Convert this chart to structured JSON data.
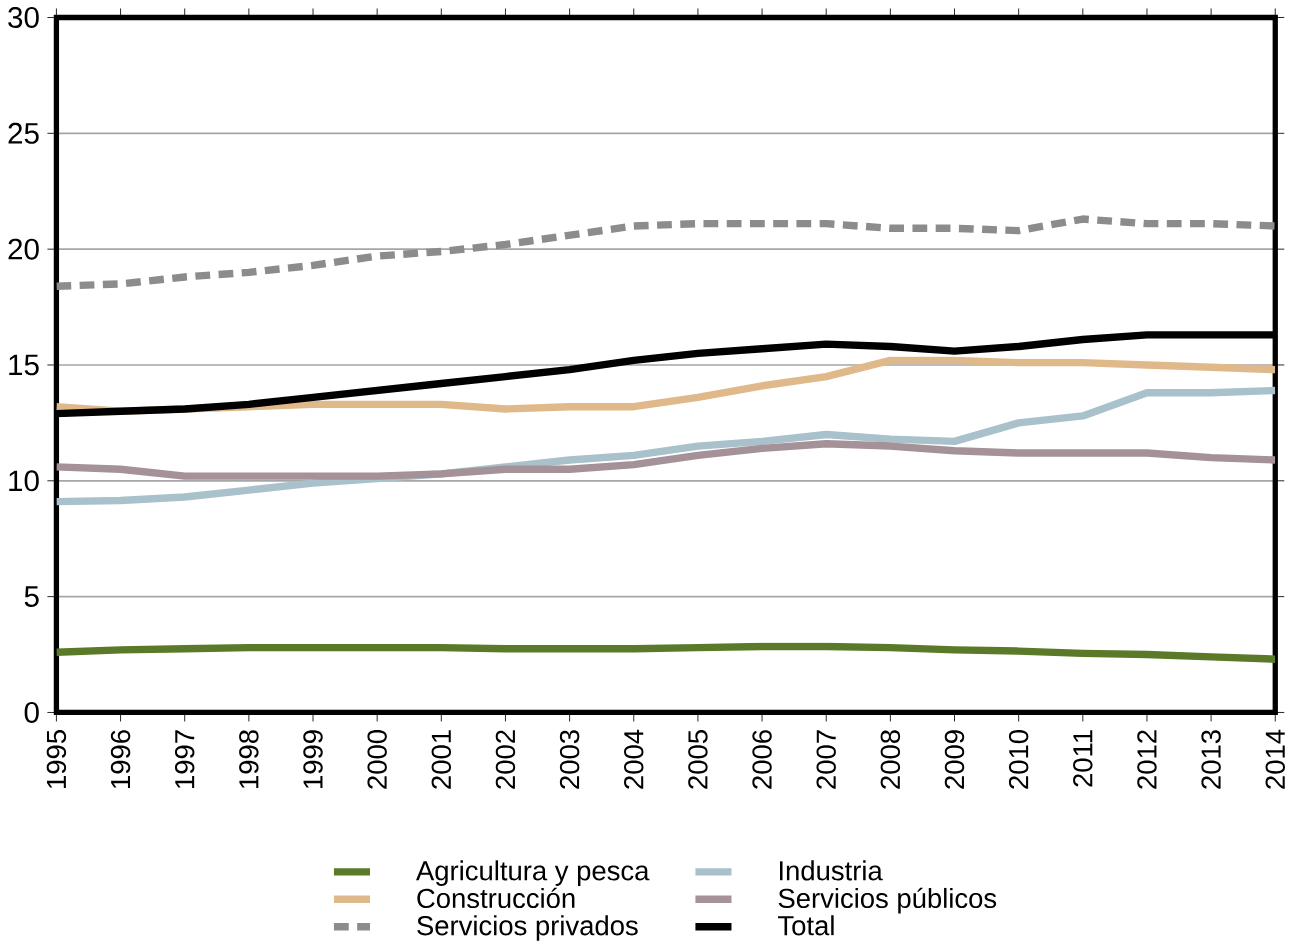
{
  "chart_data": {
    "type": "line",
    "categories": [
      "1995",
      "1996",
      "1997",
      "1998",
      "1999",
      "2000",
      "2001",
      "2002",
      "2003",
      "2004",
      "2005",
      "2006",
      "2007",
      "2008",
      "2009",
      "2010",
      "2011",
      "2012",
      "2013",
      "2014"
    ],
    "series": [
      {
        "name": "Agricultura y pesca",
        "color": "#5a7a2a",
        "values": [
          2.6,
          2.7,
          2.75,
          2.8,
          2.8,
          2.8,
          2.8,
          2.75,
          2.75,
          2.75,
          2.8,
          2.85,
          2.85,
          2.8,
          2.7,
          2.65,
          2.55,
          2.5,
          2.4,
          2.3
        ]
      },
      {
        "name": "Industria",
        "color": "#a9c1cb",
        "values": [
          9.1,
          9.15,
          9.3,
          9.6,
          9.9,
          10.1,
          10.3,
          10.6,
          10.9,
          11.1,
          11.5,
          11.7,
          12.0,
          11.8,
          11.7,
          12.5,
          12.8,
          13.8,
          13.8,
          13.9
        ]
      },
      {
        "name": "Construcción",
        "color": "#e0b98a",
        "values": [
          13.2,
          13.0,
          13.1,
          13.2,
          13.3,
          13.3,
          13.3,
          13.1,
          13.2,
          13.2,
          13.6,
          14.1,
          14.5,
          15.2,
          15.2,
          15.1,
          15.1,
          15.0,
          14.9,
          14.8
        ]
      },
      {
        "name": "Servicios públicos",
        "color": "#a59198",
        "values": [
          10.6,
          10.5,
          10.2,
          10.2,
          10.2,
          10.2,
          10.3,
          10.5,
          10.5,
          10.7,
          11.1,
          11.4,
          11.6,
          11.5,
          11.3,
          11.2,
          11.2,
          11.2,
          11.0,
          10.9
        ]
      },
      {
        "name": "Servicios privados",
        "color": "#8c8c8c",
        "line_style": "dashed",
        "values": [
          18.4,
          18.5,
          18.8,
          19.0,
          19.3,
          19.7,
          19.9,
          20.2,
          20.6,
          21.0,
          21.1,
          21.1,
          21.1,
          20.9,
          20.9,
          20.8,
          21.3,
          21.1,
          21.1,
          21.0
        ]
      },
      {
        "name": "Total",
        "color": "#000000",
        "values": [
          12.9,
          13.0,
          13.1,
          13.3,
          13.6,
          13.9,
          14.2,
          14.5,
          14.8,
          15.2,
          15.5,
          15.7,
          15.9,
          15.8,
          15.6,
          15.8,
          16.1,
          16.3,
          16.3,
          16.3
        ]
      }
    ],
    "ylim": [
      0,
      30
    ],
    "yticks": [
      0,
      5,
      10,
      15,
      20,
      25,
      30
    ],
    "grid": "y",
    "legend": "bottom",
    "line_style": "solid",
    "marker": "none"
  }
}
